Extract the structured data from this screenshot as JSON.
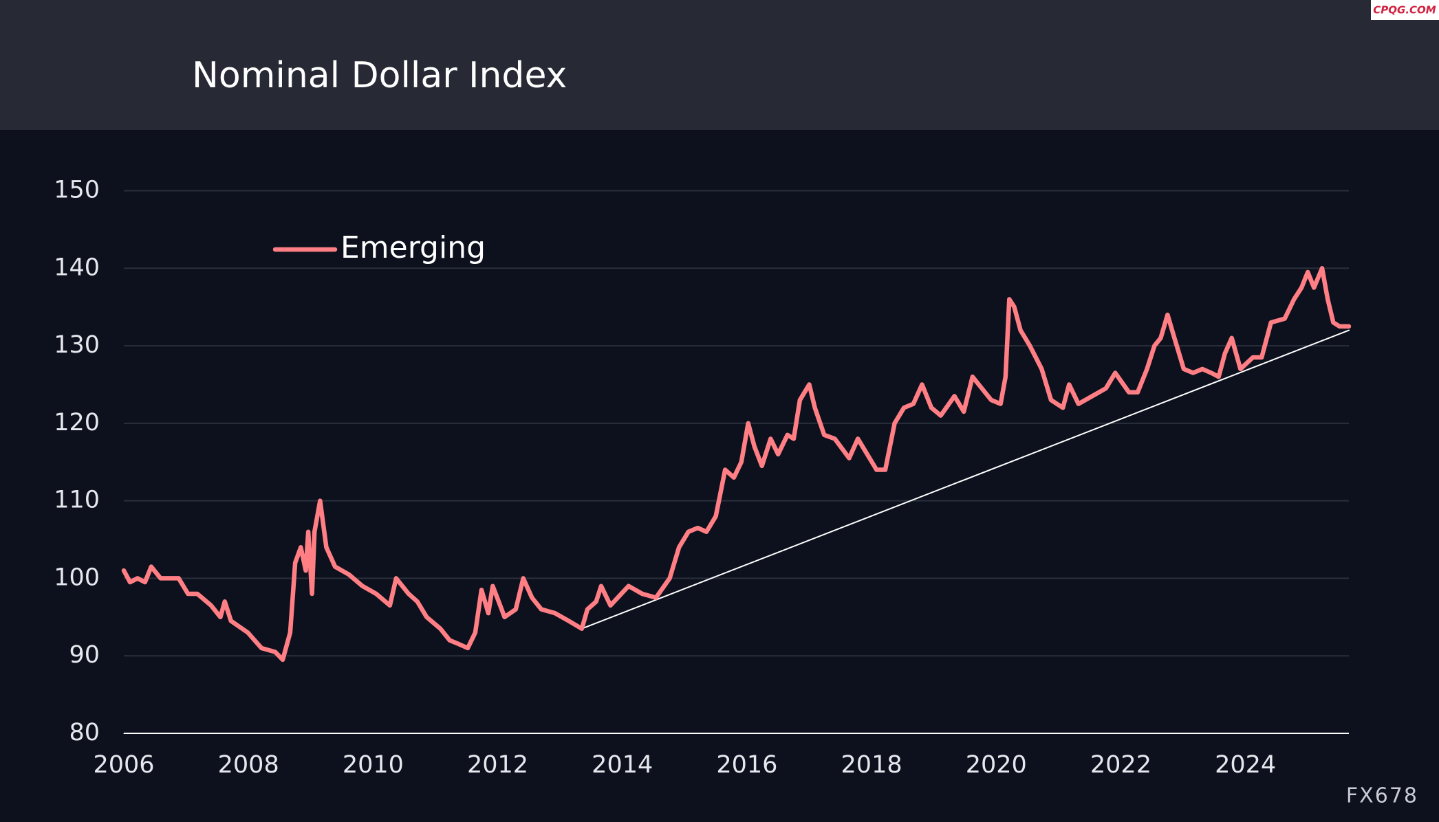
{
  "chart_data": {
    "type": "line",
    "title": "Nominal Dollar Index",
    "watermark": "CPQG.COM",
    "source": "FX678",
    "xlim": [
      2006,
      2025.66
    ],
    "xticks": [
      2006,
      2008,
      2010,
      2012,
      2014,
      2016,
      2018,
      2020,
      2022,
      2024
    ],
    "ylim": [
      80,
      150
    ],
    "yticks": [
      80,
      90,
      100,
      110,
      120,
      130,
      140,
      150
    ],
    "grid": true,
    "legend": "upper left",
    "x": [
      2006.0,
      2006.1,
      2006.22,
      2006.34,
      2006.44,
      2006.59,
      2006.88,
      2007.03,
      2007.18,
      2007.4,
      2007.55,
      2007.62,
      2007.72,
      2007.99,
      2008.21,
      2008.43,
      2008.55,
      2008.67,
      2008.75,
      2008.84,
      2008.92,
      2008.96,
      2009.02,
      2009.06,
      2009.15,
      2009.25,
      2009.39,
      2009.61,
      2009.83,
      2010.05,
      2010.27,
      2010.37,
      2010.57,
      2010.71,
      2010.86,
      2011.08,
      2011.23,
      2011.38,
      2011.52,
      2011.64,
      2011.74,
      2011.85,
      2011.92,
      2012.04,
      2012.11,
      2012.29,
      2012.41,
      2012.55,
      2012.7,
      2012.92,
      2013.14,
      2013.35,
      2013.44,
      2013.58,
      2013.66,
      2013.81,
      2014.1,
      2014.32,
      2014.54,
      2014.76,
      2014.91,
      2015.06,
      2015.21,
      2015.35,
      2015.5,
      2015.65,
      2015.79,
      2015.91,
      2016.02,
      2016.12,
      2016.24,
      2016.38,
      2016.5,
      2016.65,
      2016.75,
      2016.85,
      2017.0,
      2017.09,
      2017.24,
      2017.41,
      2017.64,
      2017.78,
      2017.93,
      2018.08,
      2018.22,
      2018.37,
      2018.52,
      2018.67,
      2018.81,
      2018.96,
      2019.11,
      2019.33,
      2019.48,
      2019.62,
      2019.77,
      2019.92,
      2020.07,
      2020.15,
      2020.21,
      2020.29,
      2020.39,
      2020.54,
      2020.73,
      2020.88,
      2021.07,
      2021.17,
      2021.32,
      2021.54,
      2021.76,
      2021.91,
      2022.13,
      2022.27,
      2022.42,
      2022.54,
      2022.64,
      2022.75,
      2022.86,
      2023.01,
      2023.16,
      2023.31,
      2023.45,
      2023.57,
      2023.67,
      2023.78,
      2023.92,
      2024.12,
      2024.26,
      2024.41,
      2024.63,
      2024.78,
      2024.9,
      2025.0,
      2025.1,
      2025.23,
      2025.32,
      2025.41,
      2025.51,
      2025.66
    ],
    "series": [
      {
        "name": "Emerging",
        "color": "#ff7f85",
        "values": [
          101,
          99.5,
          100,
          99.5,
          101.5,
          100,
          100,
          98,
          98,
          96.5,
          95,
          97,
          94.5,
          93,
          91,
          90.5,
          89.5,
          93,
          102,
          104,
          101,
          106,
          98,
          106,
          110,
          104,
          101.5,
          100.5,
          99,
          98,
          96.5,
          100,
          98,
          97,
          95,
          93.5,
          92,
          91.5,
          91,
          93,
          98.5,
          95.5,
          99,
          96.5,
          95,
          96,
          100,
          97.5,
          96,
          95.5,
          94.5,
          93.5,
          96,
          97,
          99,
          96.5,
          99,
          98,
          97.5,
          100,
          104,
          106,
          106.5,
          106,
          108,
          114,
          113,
          115,
          120,
          117,
          114.5,
          118,
          116,
          118.5,
          118,
          123,
          125,
          122,
          118.5,
          118,
          115.5,
          118,
          116,
          114,
          114,
          120,
          122,
          122.5,
          125,
          122,
          121,
          123.5,
          121.5,
          126,
          124.5,
          123,
          122.5,
          126,
          136,
          135,
          132,
          130,
          127,
          123,
          122,
          125,
          122.5,
          123.5,
          124.5,
          126.5,
          124,
          124,
          127,
          130,
          131,
          134,
          131,
          127,
          126.5,
          127,
          126.5,
          126,
          129,
          131,
          127,
          128.5,
          128.5,
          133,
          133.5,
          136,
          137.5,
          139.5,
          137.5,
          140,
          136,
          133,
          132.5,
          132.5
        ]
      }
    ],
    "trendline": {
      "color": "#ffffff",
      "x": [
        2013.35,
        2025.66
      ],
      "values": [
        93.5,
        132
      ]
    }
  }
}
